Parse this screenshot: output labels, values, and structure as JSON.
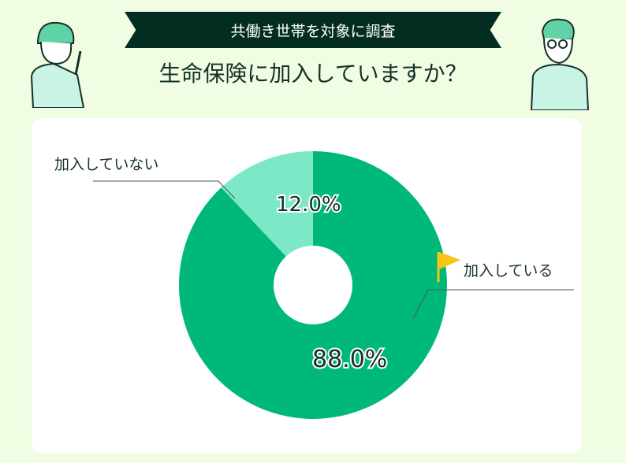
{
  "header": {
    "banner": "共働き世帯を対象に調査",
    "title": "生命保険に加入していますか？"
  },
  "colors": {
    "background": "#f1fde2",
    "banner": "#042d22",
    "primary": "#00b87a",
    "secondary": "#7de8c8",
    "flag": "#f7c515"
  },
  "chart_data": {
    "type": "pie",
    "donut": true,
    "title": "生命保険に加入していますか？",
    "categories": [
      "加入している",
      "加入していない"
    ],
    "values": [
      88.0,
      12.0
    ],
    "data_labels": [
      "88.0%",
      "12.0%"
    ],
    "colors": [
      "#00b87a",
      "#7de8c8"
    ]
  }
}
